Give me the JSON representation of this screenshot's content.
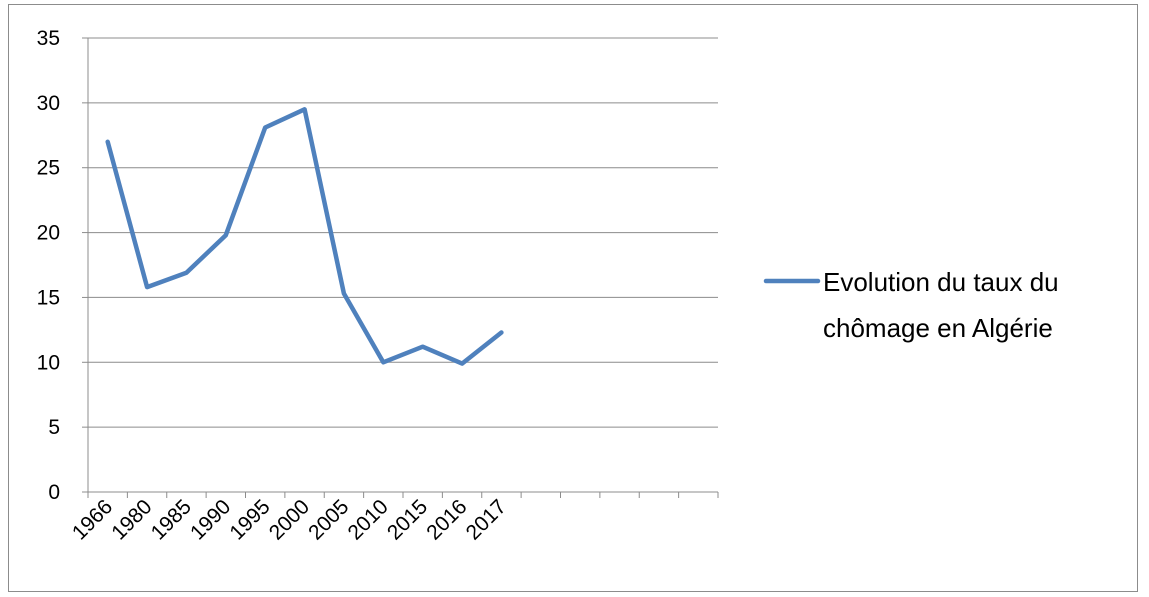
{
  "chart_data": {
    "type": "line",
    "categories": [
      "1966",
      "1980",
      "1985",
      "1990",
      "1995",
      "2000",
      "2005",
      "2010",
      "2015",
      "2016",
      "2017"
    ],
    "category_slots": 16,
    "series": [
      {
        "name": "Evolution du taux du chômage en Algérie",
        "values": [
          27,
          15.8,
          16.9,
          19.8,
          28.1,
          29.5,
          15.3,
          10,
          11.2,
          9.9,
          12.3
        ],
        "color": "#4f81bd"
      }
    ],
    "yticks": [
      "0",
      "5",
      "10",
      "15",
      "20",
      "25",
      "30",
      "35"
    ],
    "ylim": [
      0,
      35
    ],
    "ystep": 5,
    "grid": true,
    "legend_position": "right",
    "legend_lines": [
      "Evolution du taux du",
      "chômage en Algérie"
    ],
    "title": "",
    "xlabel": "",
    "ylabel": ""
  }
}
